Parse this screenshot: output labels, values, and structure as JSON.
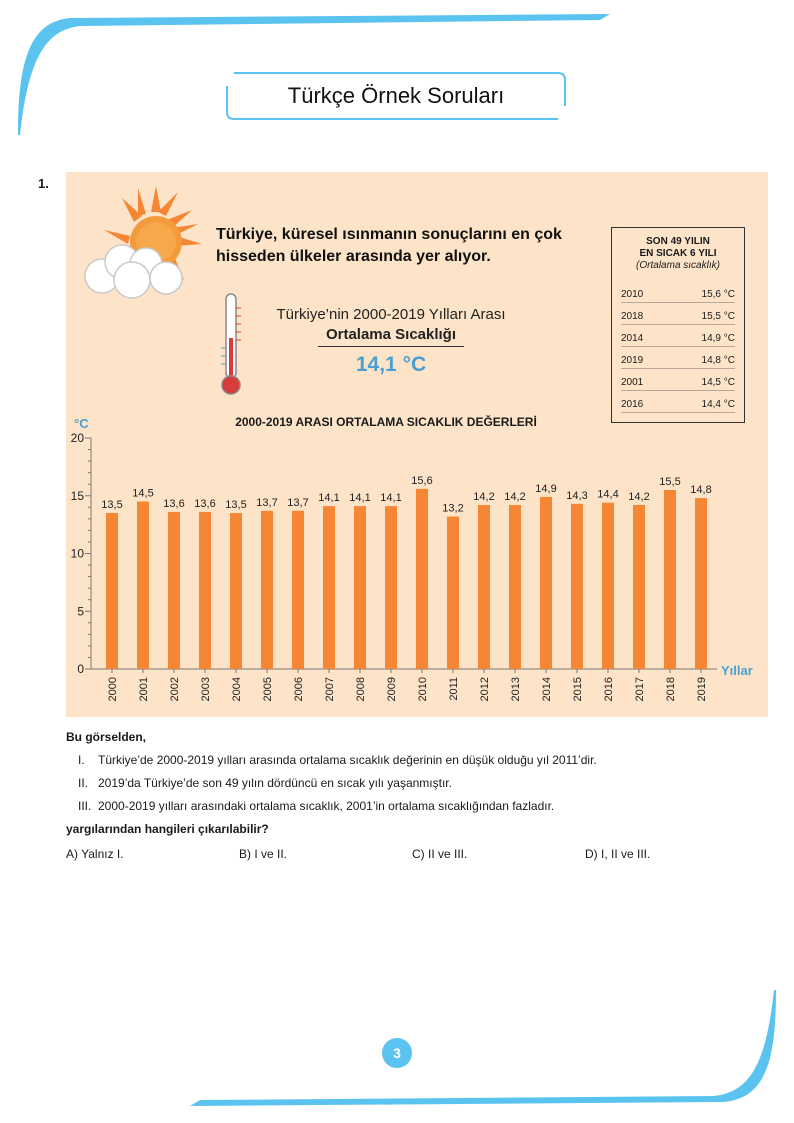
{
  "header": {
    "title": "Türkçe Örnek Soruları"
  },
  "question": {
    "number": "1.",
    "intro": "Türkiye, küresel ısınmanın sonuçlarını en çok hisseden ülkeler arasında yer alıyor.",
    "average": {
      "line1": "Türkiye’nin 2000-2019 Yılları Arası",
      "line2": "Ortalama Sıcaklığı",
      "value": "14,1 °C"
    },
    "hottest": {
      "title_line1": "SON 49 YILIN",
      "title_line2": "EN SICAK 6 YILI",
      "subtitle": "(Ortalama sıcaklık)",
      "rows": [
        {
          "year": "2010",
          "temp": "15,6 °C"
        },
        {
          "year": "2018",
          "temp": "15,5 °C"
        },
        {
          "year": "2014",
          "temp": "14,9 °C"
        },
        {
          "year": "2019",
          "temp": "14,8 °C"
        },
        {
          "year": "2001",
          "temp": "14,5 °C"
        },
        {
          "year": "2016",
          "temp": "14,4 °C"
        }
      ]
    },
    "lead": "Bu görselden,",
    "statements": [
      {
        "num": "I.",
        "text": "Türkiye’de 2000-2019 yılları arasında ortalama sıcaklık değerinin en düşük olduğu yıl 2011’dir."
      },
      {
        "num": "II.",
        "text": "2019’da Türkiye’de son 49 yılın dördüncü en sıcak yılı yaşanmıştır."
      },
      {
        "num": "III.",
        "text": "2000-2019 yılları arasındaki ortalama sıcaklık, 2001’in ortalama sıcaklığından fazladır."
      }
    ],
    "ask": "yargılarından hangileri çıkarılabilir?",
    "options": [
      {
        "label": "A) Yalnız I."
      },
      {
        "label": "B) I ve II."
      },
      {
        "label": "C) II ve III."
      },
      {
        "label": "D) I, II ve III."
      }
    ]
  },
  "chart_data": {
    "type": "bar",
    "title": "2000-2019 ARASI ORTALAMA SICAKLIK DEĞERLERİ",
    "ylabel": "°C",
    "xlabel": "Yıllar",
    "ylim": [
      0,
      20
    ],
    "yticks": [
      0,
      5,
      10,
      15,
      20
    ],
    "categories": [
      "2000",
      "2001",
      "2002",
      "2003",
      "2004",
      "2005",
      "2006",
      "2007",
      "2008",
      "2009",
      "2010",
      "2011",
      "2012",
      "2013",
      "2014",
      "2015",
      "2016",
      "2017",
      "2018",
      "2019"
    ],
    "values": [
      13.5,
      14.5,
      13.6,
      13.6,
      13.5,
      13.7,
      13.7,
      14.1,
      14.1,
      14.1,
      15.6,
      13.2,
      14.2,
      14.2,
      14.9,
      14.3,
      14.4,
      14.2,
      15.5,
      14.8
    ],
    "value_labels": [
      "13,5",
      "14,5",
      "13,6",
      "13,6",
      "13,5",
      "13,7",
      "13,7",
      "14,1",
      "14,1",
      "14,1",
      "15,6",
      "13,2",
      "14,2",
      "14,2",
      "14,9",
      "14,3",
      "14,4",
      "14,2",
      "15,5",
      "14,8"
    ],
    "bar_color": "#f58634",
    "grid": false
  },
  "page": {
    "number": "3"
  },
  "colors": {
    "accent": "#5bc3f0",
    "panel": "#fde4c9",
    "bar": "#f58634",
    "value": "#4a9fd0"
  }
}
